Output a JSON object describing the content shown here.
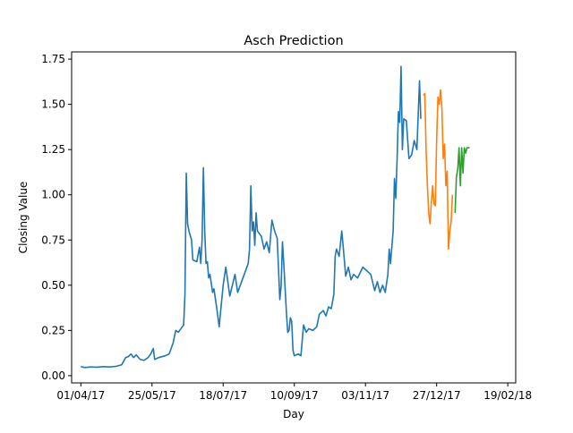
{
  "chart_data": {
    "type": "line",
    "title": "Asch Prediction",
    "xlabel": "Day",
    "ylabel": "Closing Value",
    "x_range": [
      "2017-03-25",
      "2018-02-25"
    ],
    "ylim": [
      -0.04,
      1.79
    ],
    "grid": false,
    "x_ticks": [
      {
        "date": "2017-04-01",
        "label": "01/04/17"
      },
      {
        "date": "2017-05-25",
        "label": "25/05/17"
      },
      {
        "date": "2017-07-18",
        "label": "18/07/17"
      },
      {
        "date": "2017-09-10",
        "label": "10/09/17"
      },
      {
        "date": "2017-11-03",
        "label": "03/11/17"
      },
      {
        "date": "2017-12-27",
        "label": "27/12/17"
      },
      {
        "date": "2018-02-19",
        "label": "19/02/18"
      }
    ],
    "y_ticks": [
      {
        "value": 0.0,
        "label": "0.00"
      },
      {
        "value": 0.25,
        "label": "0.25"
      },
      {
        "value": 0.5,
        "label": "0.50"
      },
      {
        "value": 0.75,
        "label": "0.75"
      },
      {
        "value": 1.0,
        "label": "1.00"
      },
      {
        "value": 1.25,
        "label": "1.25"
      },
      {
        "value": 1.5,
        "label": "1.50"
      },
      {
        "value": 1.75,
        "label": "1.75"
      }
    ],
    "series": [
      {
        "color": "#1f77b4",
        "points": [
          [
            "2017-04-01",
            0.05
          ],
          [
            "2017-04-04",
            0.045
          ],
          [
            "2017-04-08",
            0.048
          ],
          [
            "2017-04-13",
            0.047
          ],
          [
            "2017-04-18",
            0.05
          ],
          [
            "2017-04-23",
            0.048
          ],
          [
            "2017-04-28",
            0.052
          ],
          [
            "2017-05-02",
            0.06
          ],
          [
            "2017-05-05",
            0.1
          ],
          [
            "2017-05-07",
            0.105
          ],
          [
            "2017-05-09",
            0.12
          ],
          [
            "2017-05-11",
            0.1
          ],
          [
            "2017-05-13",
            0.115
          ],
          [
            "2017-05-16",
            0.09
          ],
          [
            "2017-05-19",
            0.085
          ],
          [
            "2017-05-22",
            0.1
          ],
          [
            "2017-05-24",
            0.12
          ],
          [
            "2017-05-26",
            0.15
          ],
          [
            "2017-05-27",
            0.09
          ],
          [
            "2017-05-30",
            0.1
          ],
          [
            "2017-06-04",
            0.11
          ],
          [
            "2017-06-07",
            0.12
          ],
          [
            "2017-06-10",
            0.18
          ],
          [
            "2017-06-12",
            0.25
          ],
          [
            "2017-06-14",
            0.24
          ],
          [
            "2017-06-16",
            0.26
          ],
          [
            "2017-06-18",
            0.28
          ],
          [
            "2017-06-19",
            0.45
          ],
          [
            "2017-06-20",
            1.12
          ],
          [
            "2017-06-21",
            0.84
          ],
          [
            "2017-06-22",
            0.8
          ],
          [
            "2017-06-24",
            0.75
          ],
          [
            "2017-06-25",
            0.64
          ],
          [
            "2017-06-28",
            0.63
          ],
          [
            "2017-06-30",
            0.71
          ],
          [
            "2017-07-01",
            0.62
          ],
          [
            "2017-07-02",
            0.75
          ],
          [
            "2017-07-03",
            1.15
          ],
          [
            "2017-07-04",
            0.8
          ],
          [
            "2017-07-05",
            0.62
          ],
          [
            "2017-07-06",
            0.63
          ],
          [
            "2017-07-07",
            0.54
          ],
          [
            "2017-07-08",
            0.56
          ],
          [
            "2017-07-10",
            0.46
          ],
          [
            "2017-07-11",
            0.48
          ],
          [
            "2017-07-13",
            0.38
          ],
          [
            "2017-07-15",
            0.27
          ],
          [
            "2017-07-16",
            0.35
          ],
          [
            "2017-07-18",
            0.5
          ],
          [
            "2017-07-20",
            0.6
          ],
          [
            "2017-07-21",
            0.55
          ],
          [
            "2017-07-23",
            0.44
          ],
          [
            "2017-07-25",
            0.5
          ],
          [
            "2017-07-27",
            0.56
          ],
          [
            "2017-07-29",
            0.46
          ],
          [
            "2017-07-31",
            0.5
          ],
          [
            "2017-08-03",
            0.56
          ],
          [
            "2017-08-06",
            0.62
          ],
          [
            "2017-08-07",
            0.7
          ],
          [
            "2017-08-08",
            1.05
          ],
          [
            "2017-08-09",
            0.8
          ],
          [
            "2017-08-10",
            0.85
          ],
          [
            "2017-08-11",
            0.72
          ],
          [
            "2017-08-12",
            0.9
          ],
          [
            "2017-08-13",
            0.8
          ],
          [
            "2017-08-16",
            0.77
          ],
          [
            "2017-08-18",
            0.7
          ],
          [
            "2017-08-20",
            0.74
          ],
          [
            "2017-08-22",
            0.68
          ],
          [
            "2017-08-24",
            0.86
          ],
          [
            "2017-08-26",
            0.8
          ],
          [
            "2017-08-28",
            0.76
          ],
          [
            "2017-08-30",
            0.42
          ],
          [
            "2017-08-31",
            0.5
          ],
          [
            "2017-09-01",
            0.74
          ],
          [
            "2017-09-02",
            0.62
          ],
          [
            "2017-09-04",
            0.35
          ],
          [
            "2017-09-05",
            0.24
          ],
          [
            "2017-09-06",
            0.25
          ],
          [
            "2017-09-07",
            0.32
          ],
          [
            "2017-09-08",
            0.3
          ],
          [
            "2017-09-09",
            0.14
          ],
          [
            "2017-09-10",
            0.11
          ],
          [
            "2017-09-13",
            0.12
          ],
          [
            "2017-09-15",
            0.11
          ],
          [
            "2017-09-17",
            0.28
          ],
          [
            "2017-09-19",
            0.24
          ],
          [
            "2017-09-21",
            0.26
          ],
          [
            "2017-09-24",
            0.25
          ],
          [
            "2017-09-27",
            0.27
          ],
          [
            "2017-09-29",
            0.34
          ],
          [
            "2017-10-02",
            0.36
          ],
          [
            "2017-10-04",
            0.33
          ],
          [
            "2017-10-06",
            0.38
          ],
          [
            "2017-10-08",
            0.37
          ],
          [
            "2017-10-10",
            0.45
          ],
          [
            "2017-10-11",
            0.66
          ],
          [
            "2017-10-12",
            0.7
          ],
          [
            "2017-10-14",
            0.66
          ],
          [
            "2017-10-16",
            0.8
          ],
          [
            "2017-10-17",
            0.72
          ],
          [
            "2017-10-19",
            0.55
          ],
          [
            "2017-10-21",
            0.6
          ],
          [
            "2017-10-23",
            0.53
          ],
          [
            "2017-10-25",
            0.56
          ],
          [
            "2017-10-28",
            0.54
          ],
          [
            "2017-11-01",
            0.6
          ],
          [
            "2017-11-04",
            0.58
          ],
          [
            "2017-11-07",
            0.56
          ],
          [
            "2017-11-10",
            0.47
          ],
          [
            "2017-11-12",
            0.52
          ],
          [
            "2017-11-14",
            0.46
          ],
          [
            "2017-11-16",
            0.5
          ],
          [
            "2017-11-18",
            0.46
          ],
          [
            "2017-11-20",
            0.56
          ],
          [
            "2017-11-21",
            0.7
          ],
          [
            "2017-11-22",
            0.62
          ],
          [
            "2017-11-24",
            0.8
          ],
          [
            "2017-11-25",
            1.09
          ],
          [
            "2017-11-26",
            0.98
          ],
          [
            "2017-11-27",
            1.2
          ],
          [
            "2017-11-28",
            1.46
          ],
          [
            "2017-11-29",
            1.4
          ],
          [
            "2017-11-30",
            1.71
          ],
          [
            "2017-12-01",
            1.25
          ],
          [
            "2017-12-02",
            1.42
          ],
          [
            "2017-12-04",
            1.41
          ],
          [
            "2017-12-06",
            1.2
          ],
          [
            "2017-12-08",
            1.22
          ],
          [
            "2017-12-10",
            1.3
          ],
          [
            "2017-12-12",
            1.25
          ],
          [
            "2017-12-14",
            1.63
          ],
          [
            "2017-12-15",
            1.42
          ]
        ]
      },
      {
        "color": "#ff7f0e",
        "points": [
          [
            "2017-12-17",
            1.55
          ],
          [
            "2017-12-18",
            1.56
          ],
          [
            "2017-12-19",
            1.25
          ],
          [
            "2017-12-20",
            1.05
          ],
          [
            "2017-12-21",
            0.9
          ],
          [
            "2017-12-22",
            0.84
          ],
          [
            "2017-12-23",
            0.96
          ],
          [
            "2017-12-24",
            1.05
          ],
          [
            "2017-12-25",
            0.95
          ],
          [
            "2017-12-26",
            0.94
          ],
          [
            "2017-12-27",
            1.3
          ],
          [
            "2017-12-28",
            1.54
          ],
          [
            "2017-12-29",
            1.5
          ],
          [
            "2017-12-30",
            1.58
          ],
          [
            "2017-12-31",
            1.48
          ],
          [
            "2018-01-01",
            1.2
          ],
          [
            "2018-01-02",
            1.28
          ],
          [
            "2018-01-03",
            1.05
          ],
          [
            "2018-01-04",
            1.13
          ],
          [
            "2018-01-05",
            0.7
          ],
          [
            "2018-01-06",
            0.8
          ],
          [
            "2018-01-07",
            0.85
          ],
          [
            "2018-01-08",
            1.0
          ]
        ]
      },
      {
        "color": "#2ca02c",
        "points": [
          [
            "2018-01-10",
            0.9
          ],
          [
            "2018-01-11",
            1.1
          ],
          [
            "2018-01-12",
            1.14
          ],
          [
            "2018-01-13",
            1.26
          ],
          [
            "2018-01-14",
            1.05
          ],
          [
            "2018-01-15",
            1.26
          ],
          [
            "2018-01-16",
            1.12
          ],
          [
            "2018-01-17",
            1.26
          ],
          [
            "2018-01-18",
            1.23
          ],
          [
            "2018-01-19",
            1.26
          ],
          [
            "2018-01-21",
            1.26
          ]
        ]
      }
    ]
  }
}
